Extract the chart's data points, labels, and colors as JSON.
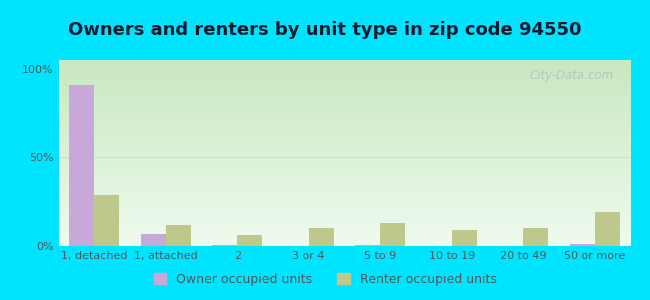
{
  "title": "Owners and renters by unit type in zip code 94550",
  "categories": [
    "1, detached",
    "1, attached",
    "2",
    "3 or 4",
    "5 to 9",
    "10 to 19",
    "20 to 49",
    "50 or more"
  ],
  "owner_values": [
    91,
    7,
    0.5,
    0.2,
    0.4,
    0.2,
    0.2,
    1.0
  ],
  "renter_values": [
    29,
    12,
    6,
    10,
    13,
    9,
    10,
    19
  ],
  "owner_color": "#c8a8d8",
  "renter_color": "#bec88a",
  "bg_outer": "#00e5ff",
  "bg_plot_top_color": "#c8e8c0",
  "bg_plot_bottom_color": "#eefaee",
  "ylabel_ticks": [
    "0%",
    "50%",
    "100%"
  ],
  "ytick_vals": [
    0,
    50,
    100
  ],
  "ylim": [
    0,
    105
  ],
  "bar_width": 0.35,
  "legend_owner": "Owner occupied units",
  "legend_renter": "Renter occupied units",
  "watermark": "City-Data.com",
  "title_fontsize": 13,
  "tick_fontsize": 8,
  "legend_fontsize": 9,
  "title_color": "#1a1a2e",
  "tick_color": "#555555"
}
